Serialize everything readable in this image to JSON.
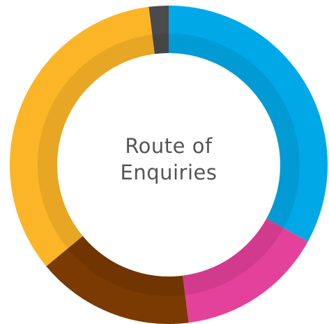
{
  "chart_data": {
    "type": "donut",
    "title": "Route of Enquiries",
    "values": [
      33,
      15,
      16,
      34,
      2
    ],
    "colors": [
      "#00a8e8",
      "#e4419a",
      "#7a3a02",
      "#fbb526",
      "#4b4b4d"
    ]
  }
}
